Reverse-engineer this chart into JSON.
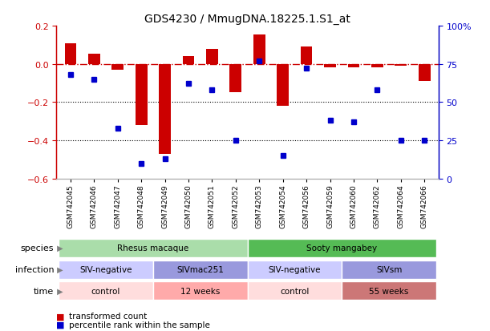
{
  "title": "GDS4230 / MmugDNA.18225.1.S1_at",
  "samples": [
    "GSM742045",
    "GSM742046",
    "GSM742047",
    "GSM742048",
    "GSM742049",
    "GSM742050",
    "GSM742051",
    "GSM742052",
    "GSM742053",
    "GSM742054",
    "GSM742056",
    "GSM742059",
    "GSM742060",
    "GSM742062",
    "GSM742064",
    "GSM742066"
  ],
  "bar_values": [
    0.11,
    0.055,
    -0.03,
    -0.32,
    -0.47,
    0.04,
    0.08,
    -0.15,
    0.155,
    -0.22,
    0.09,
    -0.02,
    -0.02,
    -0.02,
    -0.01,
    -0.09
  ],
  "dot_values": [
    68,
    65,
    33,
    10,
    13,
    62,
    58,
    25,
    77,
    15,
    72,
    38,
    37,
    58,
    25,
    25
  ],
  "bar_color": "#cc0000",
  "dot_color": "#0000cc",
  "zero_line_color": "#cc0000",
  "grid_color": "#000000",
  "ylim_left": [
    -0.6,
    0.2
  ],
  "ylim_right": [
    0,
    100
  ],
  "yticks_left": [
    0.2,
    0.0,
    -0.2,
    -0.4,
    -0.6
  ],
  "yticks_right": [
    100,
    75,
    50,
    25,
    0
  ],
  "ytick_labels_right": [
    "100%",
    "75",
    "50",
    "25",
    "0"
  ],
  "species_row": [
    {
      "label": "Rhesus macaque",
      "start": 0,
      "end": 7,
      "color": "#aaddaa"
    },
    {
      "label": "Sooty mangabey",
      "start": 8,
      "end": 15,
      "color": "#55bb55"
    }
  ],
  "infection_row": [
    {
      "label": "SIV-negative",
      "start": 0,
      "end": 3,
      "color": "#ccccff"
    },
    {
      "label": "SIVmac251",
      "start": 4,
      "end": 7,
      "color": "#9999dd"
    },
    {
      "label": "SIV-negative",
      "start": 8,
      "end": 11,
      "color": "#ccccff"
    },
    {
      "label": "SIVsm",
      "start": 12,
      "end": 15,
      "color": "#9999dd"
    }
  ],
  "time_row": [
    {
      "label": "control",
      "start": 0,
      "end": 3,
      "color": "#ffdddd"
    },
    {
      "label": "12 weeks",
      "start": 4,
      "end": 7,
      "color": "#ffaaaa"
    },
    {
      "label": "control",
      "start": 8,
      "end": 11,
      "color": "#ffdddd"
    },
    {
      "label": "55 weeks",
      "start": 12,
      "end": 15,
      "color": "#cc7777"
    }
  ],
  "legend_bar_label": "transformed count",
  "legend_dot_label": "percentile rank within the sample",
  "bar_width": 0.5,
  "row_labels": [
    "species",
    "infection",
    "time"
  ]
}
